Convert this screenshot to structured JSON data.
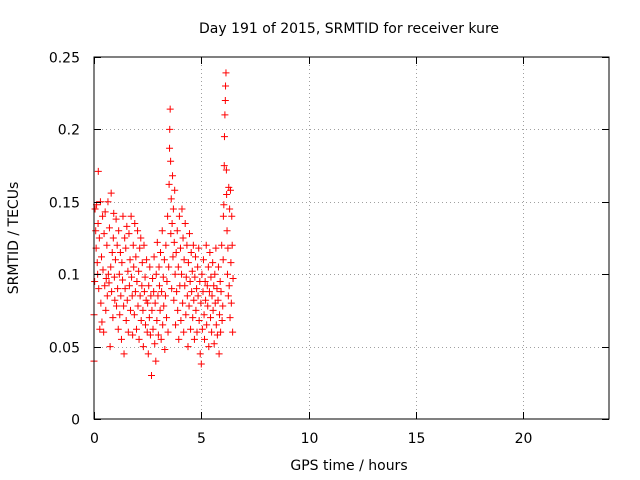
{
  "chart_data": {
    "type": "scatter",
    "title": "Day 191 of 2015, SRMTID for receiver kure",
    "xlabel": "GPS time / hours",
    "ylabel": "SRMTID / TECUs",
    "xlim": [
      0,
      24
    ],
    "ylim": [
      0,
      0.25
    ],
    "x_ticks": [
      0,
      5,
      10,
      15,
      20
    ],
    "x_tick_labels": [
      "0",
      "5",
      "10",
      "15",
      "20"
    ],
    "y_ticks": [
      0,
      0.05,
      0.1,
      0.15,
      0.2,
      0.25
    ],
    "y_tick_labels": [
      "0",
      "0.05",
      "0.1",
      "0.15",
      "0.2",
      "0.25"
    ],
    "grid": true,
    "marker": "plus",
    "series": [
      {
        "name": "SRMTID",
        "color": "#ff0000",
        "points": [
          [
            0.0,
            0.04
          ],
          [
            0.0,
            0.072
          ],
          [
            0.03,
            0.095
          ],
          [
            0.05,
            0.145
          ],
          [
            0.08,
            0.13
          ],
          [
            0.1,
            0.118
          ],
          [
            0.12,
            0.148
          ],
          [
            0.15,
            0.108
          ],
          [
            0.17,
            0.1
          ],
          [
            0.19,
            0.135
          ],
          [
            0.2,
            0.171
          ],
          [
            0.22,
            0.09
          ],
          [
            0.25,
            0.125
          ],
          [
            0.27,
            0.062
          ],
          [
            0.3,
            0.15
          ],
          [
            0.32,
            0.08
          ],
          [
            0.35,
            0.112
          ],
          [
            0.37,
            0.067
          ],
          [
            0.4,
            0.14
          ],
          [
            0.42,
            0.103
          ],
          [
            0.45,
            0.06
          ],
          [
            0.47,
            0.128
          ],
          [
            0.5,
            0.092
          ],
          [
            0.52,
            0.143
          ],
          [
            0.55,
            0.075
          ],
          [
            0.57,
            0.097
          ],
          [
            0.6,
            0.12
          ],
          [
            0.62,
            0.085
          ],
          [
            0.65,
            0.15
          ],
          [
            0.67,
            0.1
          ],
          [
            0.7,
            0.094
          ],
          [
            0.72,
            0.132
          ],
          [
            0.75,
            0.05
          ],
          [
            0.78,
            0.105
          ],
          [
            0.8,
            0.156
          ],
          [
            0.82,
            0.088
          ],
          [
            0.85,
            0.115
          ],
          [
            0.88,
            0.07
          ],
          [
            0.9,
            0.125
          ],
          [
            0.92,
            0.142
          ],
          [
            0.95,
            0.098
          ],
          [
            0.97,
            0.082
          ],
          [
            1.0,
            0.11
          ],
          [
            1.03,
            0.138
          ],
          [
            1.05,
            0.078
          ],
          [
            1.08,
            0.12
          ],
          [
            1.1,
            0.09
          ],
          [
            1.13,
            0.062
          ],
          [
            1.15,
            0.13
          ],
          [
            1.18,
            0.1
          ],
          [
            1.2,
            0.072
          ],
          [
            1.23,
            0.115
          ],
          [
            1.25,
            0.085
          ],
          [
            1.28,
            0.055
          ],
          [
            1.3,
            0.108
          ],
          [
            1.33,
            0.096
          ],
          [
            1.35,
            0.14
          ],
          [
            1.38,
            0.078
          ],
          [
            1.4,
            0.045
          ],
          [
            1.43,
            0.125
          ],
          [
            1.45,
            0.09
          ],
          [
            1.48,
            0.118
          ],
          [
            1.5,
            0.068
          ],
          [
            1.53,
            0.133
          ],
          [
            1.55,
            0.082
          ],
          [
            1.58,
            0.102
          ],
          [
            1.6,
            0.06
          ],
          [
            1.63,
            0.128
          ],
          [
            1.65,
            0.092
          ],
          [
            1.68,
            0.11
          ],
          [
            1.7,
            0.075
          ],
          [
            1.73,
            0.14
          ],
          [
            1.75,
            0.098
          ],
          [
            1.78,
            0.085
          ],
          [
            1.8,
            0.058
          ],
          [
            1.83,
            0.12
          ],
          [
            1.85,
            0.105
          ],
          [
            1.88,
            0.072
          ],
          [
            1.9,
            0.135
          ],
          [
            1.93,
            0.088
          ],
          [
            1.95,
            0.112
          ],
          [
            1.98,
            0.062
          ],
          [
            2.0,
            0.095
          ],
          [
            2.03,
            0.13
          ],
          [
            2.05,
            0.078
          ],
          [
            2.08,
            0.102
          ],
          [
            2.1,
            0.055
          ],
          [
            2.13,
            0.118
          ],
          [
            2.15,
            0.085
          ],
          [
            2.18,
            0.125
          ],
          [
            2.2,
            0.068
          ],
          [
            2.23,
            0.092
          ],
          [
            2.25,
            0.108
          ],
          [
            2.28,
            0.075
          ],
          [
            2.3,
            0.05
          ],
          [
            2.33,
            0.12
          ],
          [
            2.35,
            0.088
          ],
          [
            2.38,
            0.098
          ],
          [
            2.4,
            0.065
          ],
          [
            2.43,
            0.082
          ],
          [
            2.45,
            0.11
          ],
          [
            2.48,
            0.06
          ],
          [
            2.5,
            0.08
          ],
          [
            2.53,
            0.045
          ],
          [
            2.55,
            0.092
          ],
          [
            2.58,
            0.07
          ],
          [
            2.6,
            0.105
          ],
          [
            2.63,
            0.058
          ],
          [
            2.65,
            0.085
          ],
          [
            2.68,
            0.03
          ],
          [
            2.7,
            0.075
          ],
          [
            2.73,
            0.097
          ],
          [
            2.75,
            0.062
          ],
          [
            2.78,
            0.088
          ],
          [
            2.8,
            0.112
          ],
          [
            2.83,
            0.052
          ],
          [
            2.85,
            0.08
          ],
          [
            2.88,
            0.04
          ],
          [
            2.9,
            0.1
          ],
          [
            2.93,
            0.068
          ],
          [
            2.95,
            0.122
          ],
          [
            2.98,
            0.085
          ],
          [
            3.0,
            0.058
          ],
          [
            3.03,
            0.105
          ],
          [
            3.05,
            0.092
          ],
          [
            3.08,
            0.075
          ],
          [
            3.1,
            0.115
          ],
          [
            3.13,
            0.055
          ],
          [
            3.15,
            0.088
          ],
          [
            3.18,
            0.13
          ],
          [
            3.2,
            0.065
          ],
          [
            3.23,
            0.098
          ],
          [
            3.25,
            0.078
          ],
          [
            3.28,
            0.11
          ],
          [
            3.3,
            0.048
          ],
          [
            3.33,
            0.085
          ],
          [
            3.35,
            0.12
          ],
          [
            3.38,
            0.07
          ],
          [
            3.4,
            0.095
          ],
          [
            3.43,
            0.14
          ],
          [
            3.45,
            0.06
          ],
          [
            3.48,
            0.105
          ],
          [
            3.5,
            0.162
          ],
          [
            3.52,
            0.187
          ],
          [
            3.53,
            0.2
          ],
          [
            3.55,
            0.214
          ],
          [
            3.57,
            0.178
          ],
          [
            3.58,
            0.128
          ],
          [
            3.6,
            0.152
          ],
          [
            3.62,
            0.09
          ],
          [
            3.64,
            0.135
          ],
          [
            3.66,
            0.168
          ],
          [
            3.68,
            0.112
          ],
          [
            3.7,
            0.145
          ],
          [
            3.72,
            0.082
          ],
          [
            3.74,
            0.122
          ],
          [
            3.76,
            0.158
          ],
          [
            3.78,
            0.1
          ],
          [
            3.8,
            0.065
          ],
          [
            3.83,
            0.115
          ],
          [
            3.85,
            0.088
          ],
          [
            3.88,
            0.13
          ],
          [
            3.9,
            0.075
          ],
          [
            3.93,
            0.105
          ],
          [
            3.95,
            0.055
          ],
          [
            3.98,
            0.14
          ],
          [
            4.0,
            0.092
          ],
          [
            4.03,
            0.118
          ],
          [
            4.05,
            0.068
          ],
          [
            4.08,
            0.1
          ],
          [
            4.1,
            0.145
          ],
          [
            4.13,
            0.08
          ],
          [
            4.15,
            0.125
          ],
          [
            4.18,
            0.06
          ],
          [
            4.2,
            0.11
          ],
          [
            4.23,
            0.092
          ],
          [
            4.25,
            0.135
          ],
          [
            4.28,
            0.072
          ],
          [
            4.3,
            0.098
          ],
          [
            4.33,
            0.12
          ],
          [
            4.35,
            0.085
          ],
          [
            4.38,
            0.05
          ],
          [
            4.4,
            0.108
          ],
          [
            4.43,
            0.078
          ],
          [
            4.45,
            0.128
          ],
          [
            4.48,
            0.095
          ],
          [
            4.5,
            0.062
          ],
          [
            4.53,
            0.115
          ],
          [
            4.55,
            0.088
          ],
          [
            4.58,
            0.102
          ],
          [
            4.6,
            0.07
          ],
          [
            4.63,
            0.12
          ],
          [
            4.65,
            0.082
          ],
          [
            4.68,
            0.055
          ],
          [
            4.7,
            0.098
          ],
          [
            4.73,
            0.112
          ],
          [
            4.75,
            0.075
          ],
          [
            4.78,
            0.09
          ],
          [
            4.8,
            0.06
          ],
          [
            4.83,
            0.105
          ],
          [
            4.85,
            0.085
          ],
          [
            4.88,
            0.118
          ],
          [
            4.9,
            0.068
          ],
          [
            4.93,
            0.095
          ],
          [
            4.95,
            0.045
          ],
          [
            4.98,
            0.08
          ],
          [
            5.0,
            0.038
          ],
          [
            5.03,
            0.1
          ],
          [
            5.05,
            0.062
          ],
          [
            5.08,
            0.088
          ],
          [
            5.1,
            0.11
          ],
          [
            5.13,
            0.072
          ],
          [
            5.15,
            0.055
          ],
          [
            5.18,
            0.095
          ],
          [
            5.2,
            0.082
          ],
          [
            5.23,
            0.12
          ],
          [
            5.25,
            0.065
          ],
          [
            5.28,
            0.092
          ],
          [
            5.3,
            0.078
          ],
          [
            5.33,
            0.105
          ],
          [
            5.35,
            0.05
          ],
          [
            5.38,
            0.088
          ],
          [
            5.4,
            0.115
          ],
          [
            5.43,
            0.07
          ],
          [
            5.45,
            0.098
          ],
          [
            5.48,
            0.06
          ],
          [
            5.5,
            0.085
          ],
          [
            5.53,
            0.108
          ],
          [
            5.55,
            0.075
          ],
          [
            5.58,
            0.092
          ],
          [
            5.6,
            0.052
          ],
          [
            5.63,
            0.1
          ],
          [
            5.65,
            0.08
          ],
          [
            5.68,
            0.118
          ],
          [
            5.7,
            0.065
          ],
          [
            5.73,
            0.09
          ],
          [
            5.75,
            0.058
          ],
          [
            5.78,
            0.082
          ],
          [
            5.8,
            0.105
          ],
          [
            5.83,
            0.045
          ],
          [
            5.85,
            0.072
          ],
          [
            5.88,
            0.095
          ],
          [
            5.9,
            0.06
          ],
          [
            5.92,
            0.088
          ],
          [
            5.95,
            0.12
          ],
          [
            5.97,
            0.068
          ],
          [
            6.0,
            0.078
          ],
          [
            6.02,
            0.11
          ],
          [
            6.03,
            0.14
          ],
          [
            6.05,
            0.148
          ],
          [
            6.07,
            0.175
          ],
          [
            6.08,
            0.195
          ],
          [
            6.1,
            0.21
          ],
          [
            6.12,
            0.22
          ],
          [
            6.13,
            0.23
          ],
          [
            6.15,
            0.239
          ],
          [
            6.17,
            0.172
          ],
          [
            6.18,
            0.155
          ],
          [
            6.2,
            0.13
          ],
          [
            6.22,
            0.1
          ],
          [
            6.24,
            0.118
          ],
          [
            6.26,
            0.085
          ],
          [
            6.28,
            0.16
          ],
          [
            6.3,
            0.092
          ],
          [
            6.32,
            0.145
          ],
          [
            6.34,
            0.07
          ],
          [
            6.36,
            0.158
          ],
          [
            6.38,
            0.108
          ],
          [
            6.4,
            0.08
          ],
          [
            6.42,
            0.14
          ],
          [
            6.44,
            0.12
          ],
          [
            6.46,
            0.06
          ],
          [
            6.48,
            0.097
          ]
        ]
      }
    ]
  }
}
